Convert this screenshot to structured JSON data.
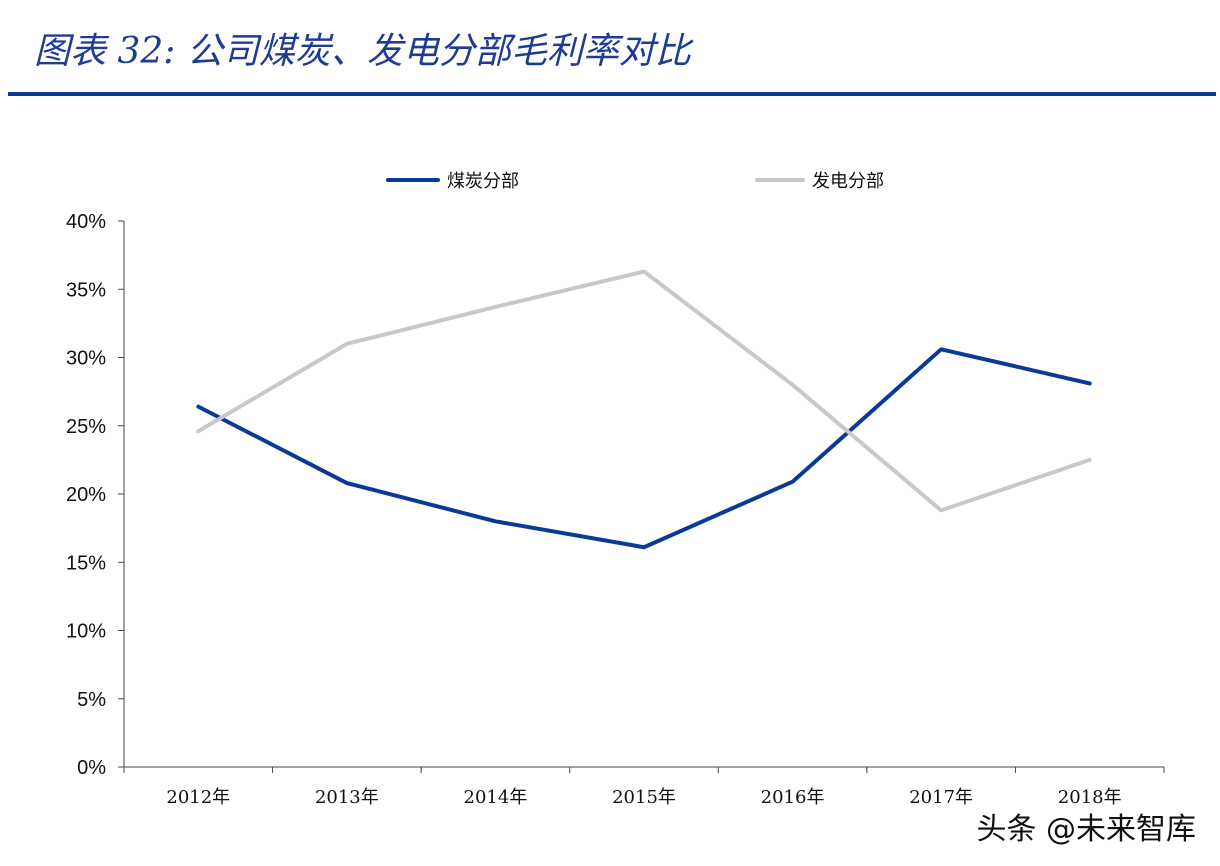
{
  "header": {
    "title": "图表 32: 公司煤炭、发电分部毛利率对比"
  },
  "colors": {
    "title": "#1f3c93",
    "rule": "#0b3a96",
    "coal": "#0b3a96",
    "power": "#c8c8c8",
    "axis": "#444444",
    "text": "#111111"
  },
  "chart_data": {
    "type": "line",
    "categories": [
      "2012年",
      "2013年",
      "2014年",
      "2015年",
      "2016年",
      "2017年",
      "2018年"
    ],
    "series": [
      {
        "name": "煤炭分部",
        "values": [
          26.4,
          20.8,
          18.0,
          16.1,
          20.9,
          30.6,
          28.1
        ]
      },
      {
        "name": "发电分部",
        "values": [
          24.6,
          31.0,
          33.7,
          36.3,
          28.0,
          18.8,
          22.5
        ]
      }
    ],
    "yticks": [
      "0%",
      "5%",
      "10%",
      "15%",
      "20%",
      "25%",
      "30%",
      "35%",
      "40%"
    ],
    "ylim": [
      0,
      40
    ],
    "grid": false,
    "legend": "top-center"
  },
  "watermark": {
    "text": "头条 @未来智库"
  }
}
